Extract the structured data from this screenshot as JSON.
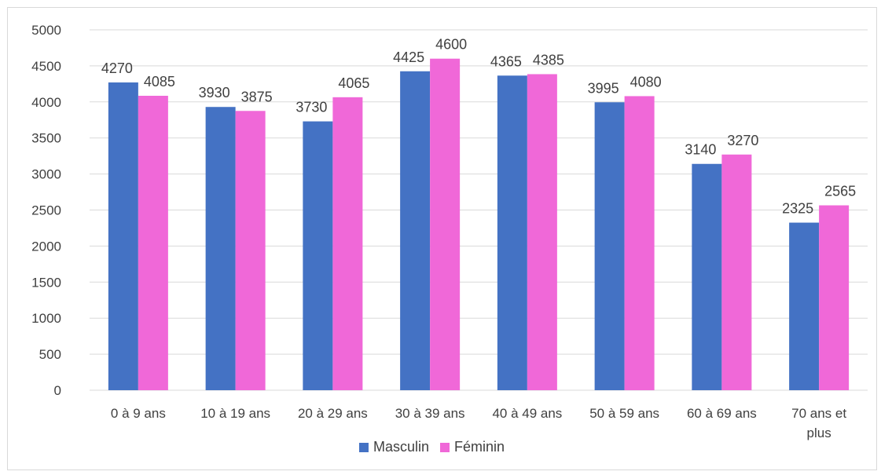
{
  "chart_data": {
    "type": "bar",
    "title": "",
    "xlabel": "",
    "ylabel": "",
    "categories": [
      [
        "0 à 9 ans"
      ],
      [
        "10 à 19 ans"
      ],
      [
        "20 à 29 ans"
      ],
      [
        "30 à 39 ans"
      ],
      [
        "40 à 49 ans"
      ],
      [
        "50 à 59 ans"
      ],
      [
        "60 à 69 ans"
      ],
      [
        "70 ans et",
        "plus"
      ]
    ],
    "series": [
      {
        "name": "Masculin",
        "color": "#4472c4",
        "values": [
          4270,
          3930,
          3730,
          4425,
          4365,
          3995,
          3140,
          2325
        ]
      },
      {
        "name": "Féminin",
        "color": "#f068d8",
        "values": [
          4085,
          3875,
          4065,
          4600,
          4385,
          4080,
          3270,
          2565
        ]
      }
    ],
    "ylim": [
      0,
      5000
    ],
    "yticks": [
      0,
      500,
      1000,
      1500,
      2000,
      2500,
      3000,
      3500,
      4000,
      4500,
      5000
    ],
    "grid": true,
    "legend": "bottom",
    "data_labels": true
  }
}
